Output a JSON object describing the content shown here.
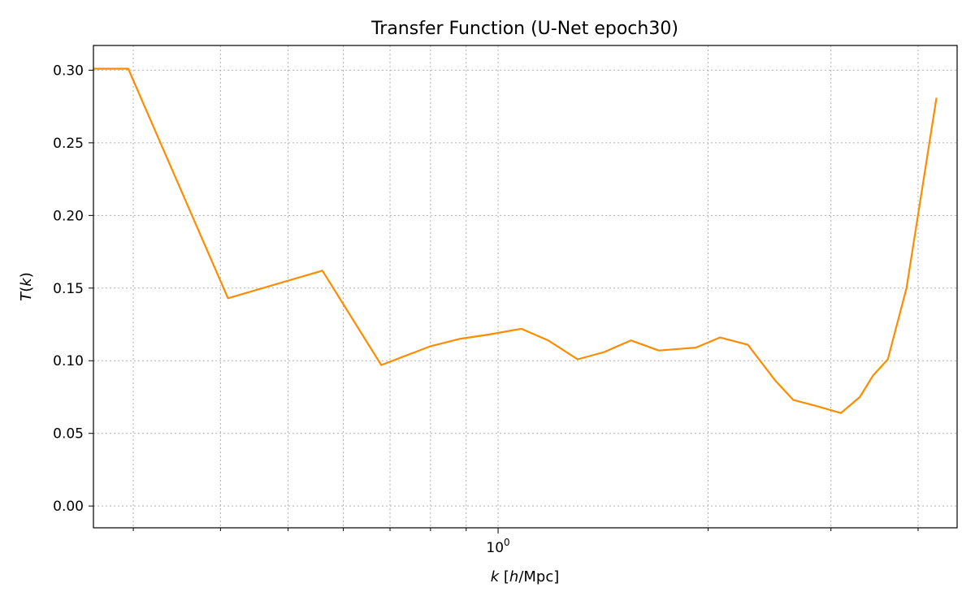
{
  "chart_data": {
    "type": "line",
    "title": "Transfer Function (U-Net epoch30)",
    "xlabel": "k [h/Mpc]",
    "ylabel": "T(k)",
    "xscale": "log",
    "xlim": [
      0.263,
      4.55
    ],
    "ylim": [
      -0.015,
      0.317
    ],
    "grid": true,
    "yticks": [
      0.0,
      0.05,
      0.1,
      0.15,
      0.2,
      0.25,
      0.3
    ],
    "ytick_labels": [
      "0.00",
      "0.05",
      "0.10",
      "0.15",
      "0.20",
      "0.25",
      "0.30"
    ],
    "xticks_major": [
      1.0
    ],
    "xtick_major_labels": [
      "10^0"
    ],
    "xticks_minor": [
      0.3,
      0.4,
      0.5,
      0.6,
      0.7,
      0.8,
      0.9,
      2,
      3,
      4
    ],
    "series": [
      {
        "color": "#ff8c00",
        "x": [
          0.263,
          0.295,
          0.41,
          0.56,
          0.68,
          0.8,
          0.88,
          0.97,
          1.08,
          1.18,
          1.3,
          1.42,
          1.55,
          1.7,
          1.92,
          2.08,
          2.28,
          2.5,
          2.65,
          2.85,
          3.1,
          3.3,
          3.45,
          3.62,
          3.85,
          4.25
        ],
        "y": [
          0.301,
          0.301,
          0.143,
          0.162,
          0.097,
          0.11,
          0.115,
          0.118,
          0.122,
          0.114,
          0.101,
          0.106,
          0.114,
          0.107,
          0.109,
          0.116,
          0.111,
          0.086,
          0.073,
          0.069,
          0.064,
          0.075,
          0.09,
          0.101,
          0.15,
          0.281
        ]
      }
    ]
  }
}
